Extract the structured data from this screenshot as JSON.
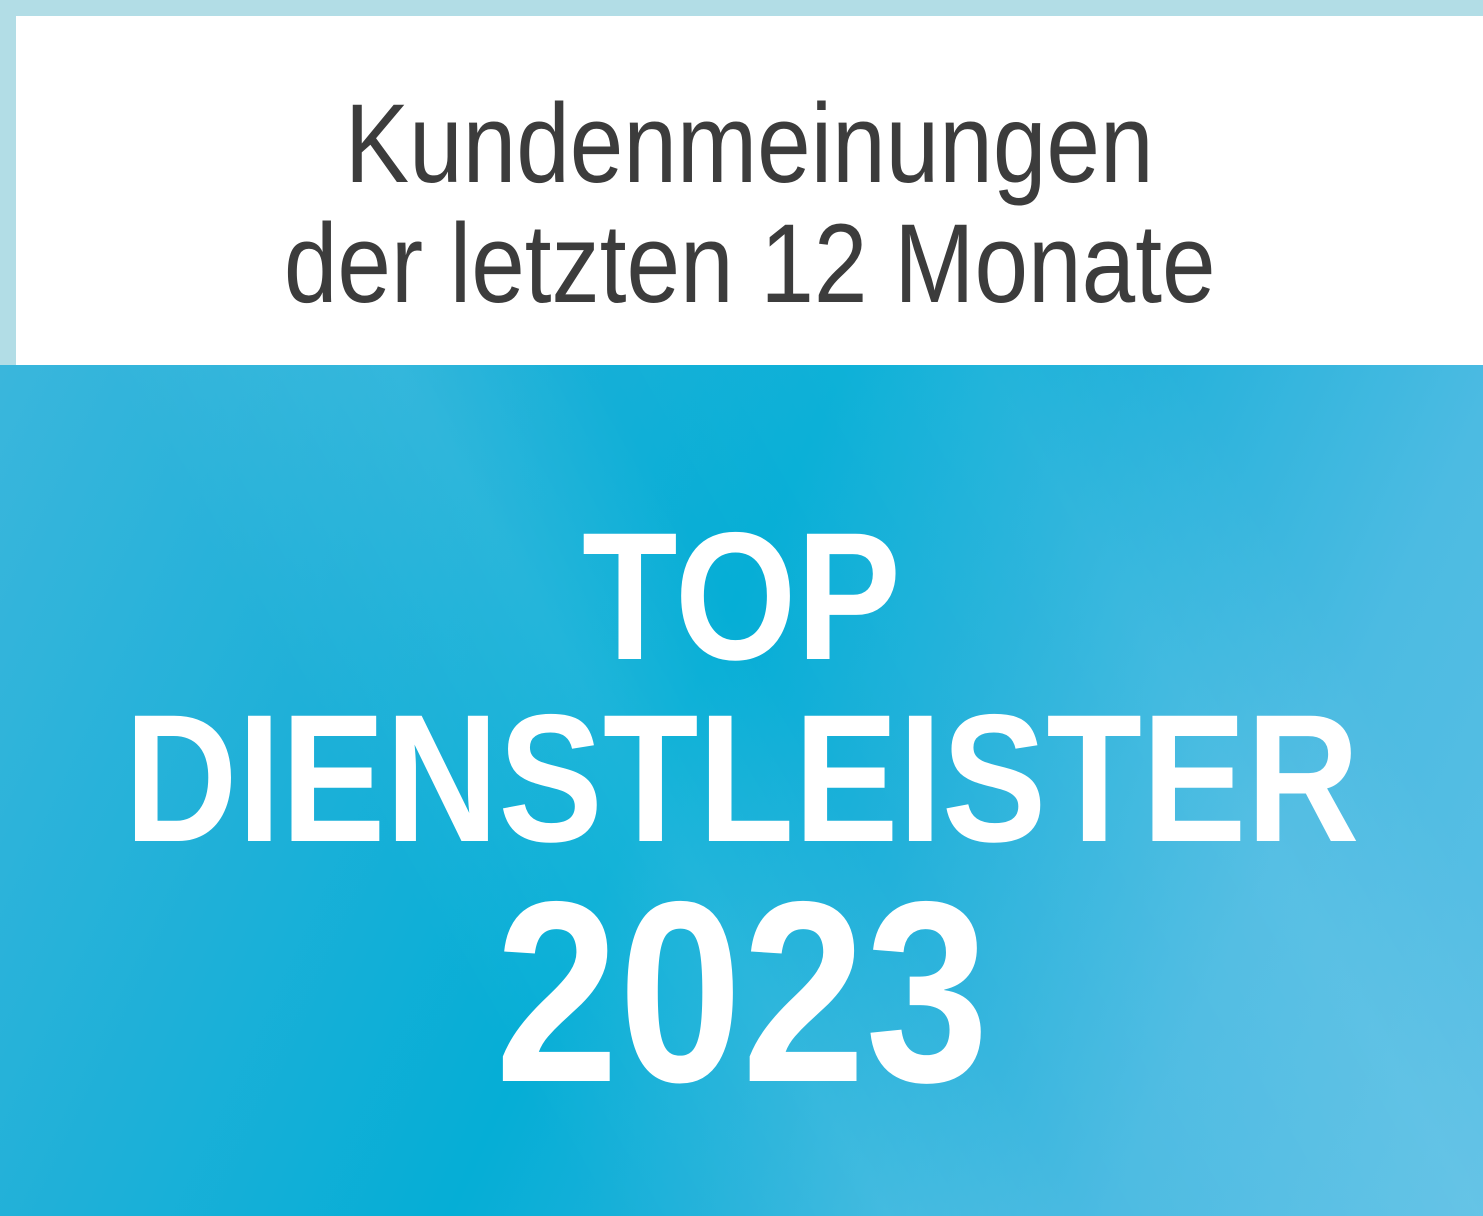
{
  "header": {
    "line1": "Kundenmeinungen",
    "line2": "der letzten 12 Monate"
  },
  "badge": {
    "line1": "TOP",
    "line2": "DIENSTLEISTER",
    "year": "2023"
  },
  "colors": {
    "frame": "#b2dde6",
    "header_bg": "#ffffff",
    "header_text": "#3c3c3c",
    "badge_bg": "#05aed6",
    "badge_text": "#ffffff"
  }
}
